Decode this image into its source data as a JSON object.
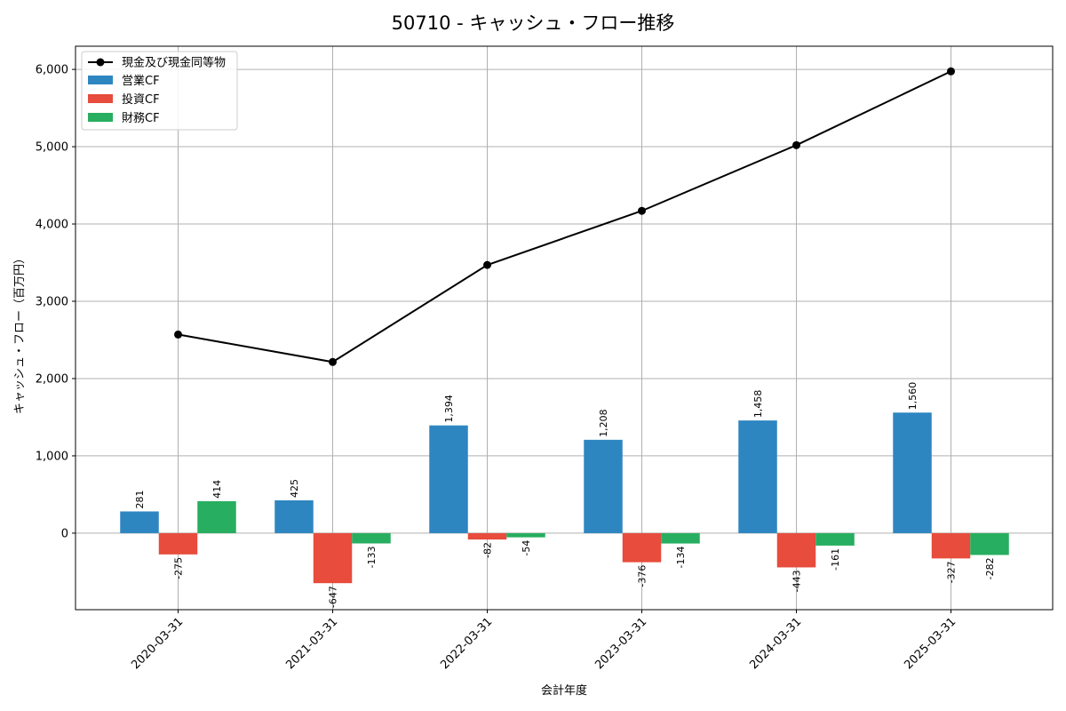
{
  "chart_data": {
    "type": "bar",
    "title": "50710 - キャッシュ・フロー推移",
    "xlabel": "会計年度",
    "ylabel": "キャッシュ・フロー（百万円）",
    "categories": [
      "2020-03-31",
      "2021-03-31",
      "2022-03-31",
      "2023-03-31",
      "2024-03-31",
      "2025-03-31"
    ],
    "ylim": [
      -990,
      6300
    ],
    "yticks": [
      0,
      1000,
      2000,
      3000,
      4000,
      5000,
      6000
    ],
    "ytick_labels": [
      "0",
      "1,000",
      "2,000",
      "3,000",
      "4,000",
      "5,000",
      "6,000"
    ],
    "grid": true,
    "legend_position": "top-left",
    "series": [
      {
        "name": "営業CF",
        "kind": "bar",
        "color": "#2e86c1",
        "values": [
          281,
          425,
          1394,
          1208,
          1458,
          1560
        ],
        "labels": [
          "281",
          "425",
          "1,394",
          "1,208",
          "1,458",
          "1,560"
        ]
      },
      {
        "name": "投資CF",
        "kind": "bar",
        "color": "#e74c3c",
        "values": [
          -275,
          -647,
          -82,
          -376,
          -443,
          -327
        ],
        "labels": [
          "-275",
          "-647",
          "-82",
          "-376",
          "-443",
          "-327"
        ]
      },
      {
        "name": "財務CF",
        "kind": "bar",
        "color": "#27ae60",
        "values": [
          414,
          -133,
          -54,
          -134,
          -161,
          -282
        ],
        "labels": [
          "414",
          "-133",
          "-54",
          "-134",
          "-161",
          "-282"
        ]
      }
    ],
    "line_series": {
      "name": "現金及び現金同等物",
      "kind": "line",
      "color": "#000000",
      "values": [
        2570,
        2215,
        3470,
        4170,
        5020,
        5975
      ]
    },
    "legend_order": [
      "現金及び現金同等物",
      "営業CF",
      "投資CF",
      "財務CF"
    ]
  }
}
